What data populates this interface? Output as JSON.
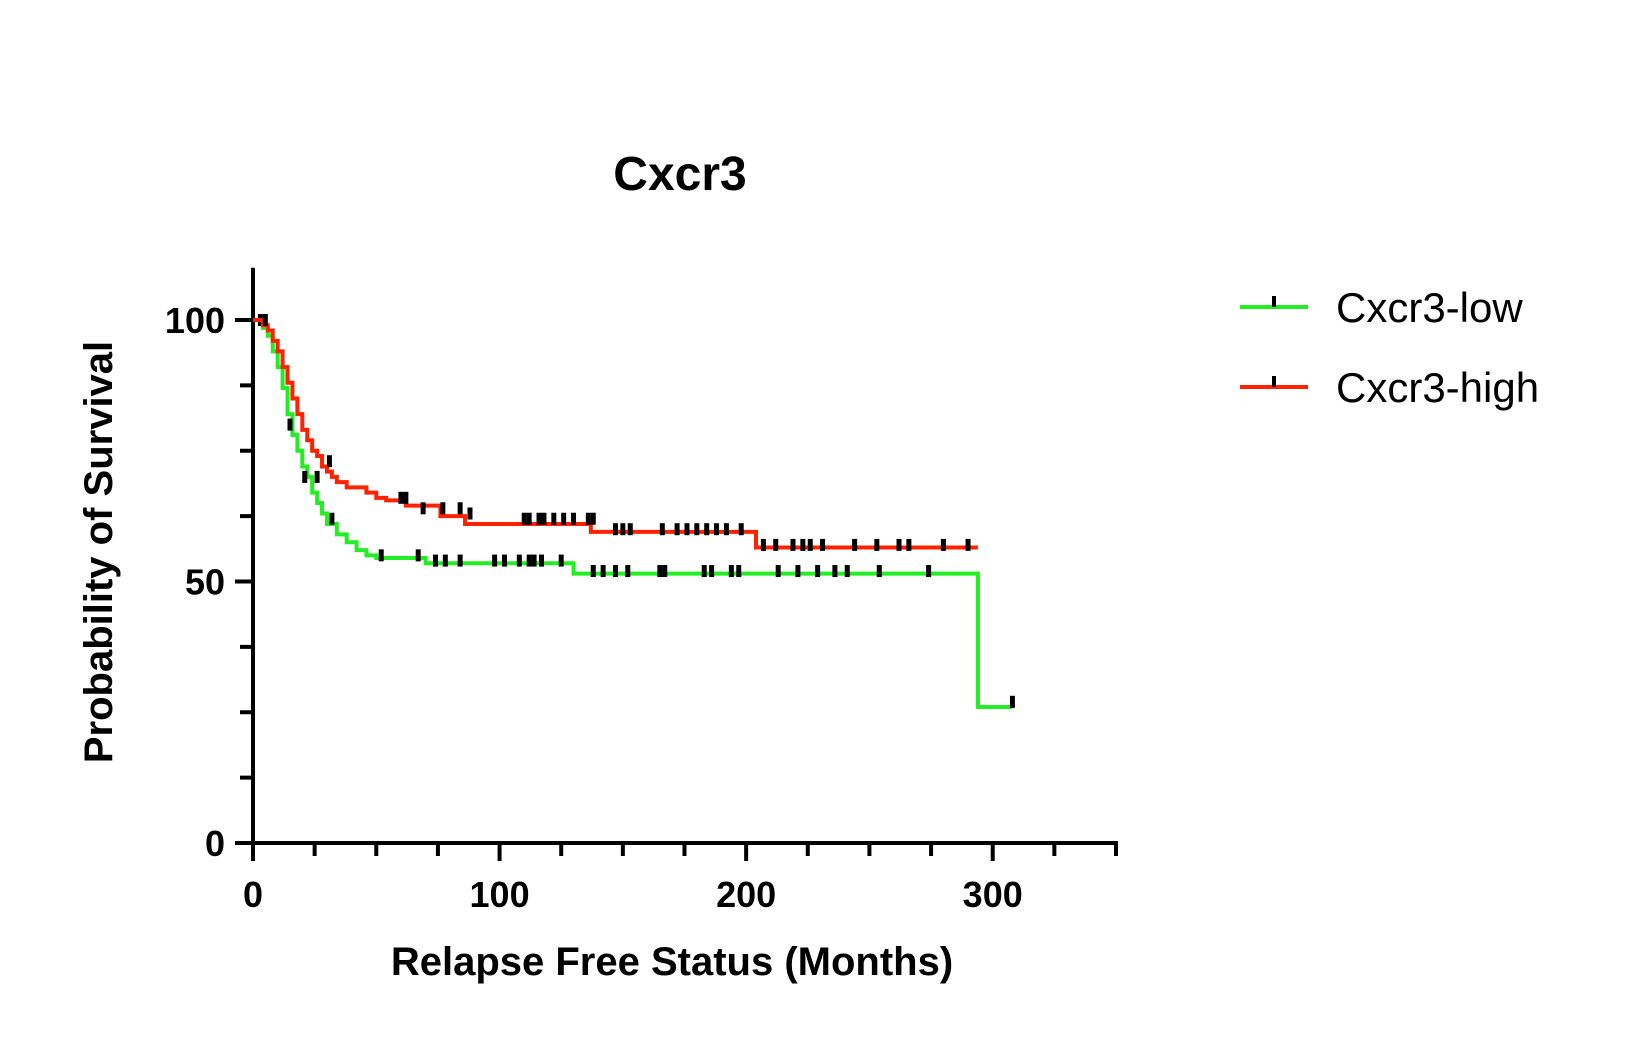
{
  "chart_data": {
    "type": "line",
    "title": "Cxcr3",
    "xlabel": "Relapse Free Status (Months)",
    "ylabel": "Probability of Survival",
    "xlim": [
      0,
      350
    ],
    "ylim": [
      0,
      110
    ],
    "x_ticks": [
      0,
      100,
      200,
      300
    ],
    "x_minor_ticks": [
      25,
      50,
      75,
      125,
      150,
      175,
      225,
      250,
      275,
      325,
      350
    ],
    "y_ticks": [
      0,
      50,
      100
    ],
    "y_minor_ticks": [
      12.5,
      25,
      37.5,
      62.5,
      75,
      87.5
    ],
    "legend_position": "top-right",
    "series": [
      {
        "name": "Cxcr3-low",
        "color": "#22ee22",
        "x": [
          0,
          4,
          6,
          8,
          10,
          12,
          14,
          16,
          18,
          20,
          22,
          24,
          26,
          28,
          30,
          34,
          38,
          42,
          46,
          50,
          70,
          130,
          294,
          308
        ],
        "y": [
          100,
          98.5,
          97,
          94,
          91,
          87,
          82,
          78,
          75,
          72,
          70,
          67,
          65,
          63,
          61,
          59,
          57.5,
          56,
          55,
          54.5,
          53.5,
          51.5,
          26,
          26
        ],
        "censor_x": [
          3,
          15,
          21,
          26,
          32,
          52,
          67,
          74,
          78,
          84,
          98,
          102,
          108,
          112,
          114,
          117,
          125,
          138,
          142,
          147,
          152,
          165,
          167,
          183,
          186,
          194,
          197,
          213,
          221,
          229,
          236,
          241,
          254,
          274,
          308
        ],
        "censor_y": [
          100,
          80,
          70,
          70,
          62,
          55,
          55,
          54,
          54,
          54,
          54,
          54,
          54,
          54,
          54,
          54,
          54,
          52,
          52,
          52,
          52,
          52,
          52,
          52,
          52,
          52,
          52,
          52,
          52,
          52,
          52,
          52,
          52,
          52,
          27
        ]
      },
      {
        "name": "Cxcr3-high",
        "color": "#ff2200",
        "x": [
          0,
          4,
          6,
          8,
          10,
          12,
          14,
          16,
          18,
          20,
          22,
          24,
          26,
          28,
          30,
          32,
          34,
          38,
          46,
          50,
          54,
          62,
          76,
          86,
          137,
          204,
          294
        ],
        "y": [
          100,
          99,
          98,
          96,
          94,
          91,
          88,
          85,
          82,
          79,
          77,
          75,
          74,
          72,
          71,
          70,
          69,
          68,
          67,
          66,
          65.5,
          64.5,
          62.5,
          61,
          59.5,
          56.5,
          56.5
        ],
        "censor_x": [
          5,
          31,
          60,
          62,
          69,
          77,
          84,
          88,
          110,
          112,
          116,
          118,
          122,
          126,
          130,
          136,
          138,
          147,
          150,
          153,
          166,
          172,
          176,
          180,
          184,
          188,
          192,
          198,
          207,
          212,
          219,
          223,
          226,
          231,
          244,
          253,
          262,
          266,
          280,
          290
        ],
        "censor_y": [
          100,
          73,
          66,
          66,
          64,
          64,
          64,
          63,
          62,
          62,
          62,
          62,
          62,
          62,
          62,
          62,
          62,
          60,
          60,
          60,
          60,
          60,
          60,
          60,
          60,
          60,
          60,
          60,
          57,
          57,
          57,
          57,
          57,
          57,
          57,
          57,
          57,
          57,
          57,
          57
        ]
      }
    ]
  }
}
